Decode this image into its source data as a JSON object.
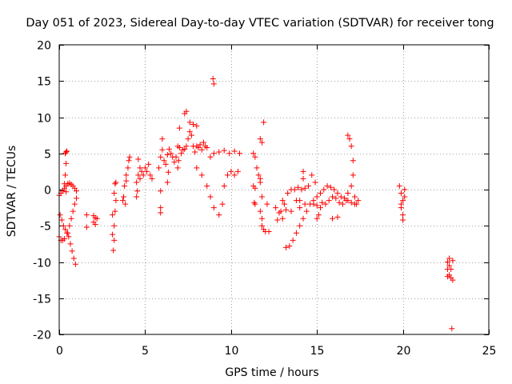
{
  "chart_data": {
    "type": "scatter",
    "title": "Day 051 of 2023, Sidereal Day-to-day VTEC variation (SDTVAR) for receiver tong",
    "xlabel": "GPS time / hours",
    "ylabel": "SDTVAR / TECUs",
    "xlim": [
      0,
      25
    ],
    "ylim": [
      -20,
      20
    ],
    "xticks": [
      0,
      5,
      10,
      15,
      20,
      25
    ],
    "yticks": [
      -20,
      -15,
      -10,
      -5,
      0,
      5,
      10,
      15,
      20
    ],
    "xtick_labels": [
      "0",
      "5",
      "10",
      "15",
      "20",
      "25"
    ],
    "ytick_labels": [
      "-20",
      "-15",
      "-10",
      "-5",
      "0",
      "5",
      "10",
      "15",
      "20"
    ],
    "grid": true,
    "marker": "+",
    "color": "#ff0000",
    "series": [
      {
        "name": "SDTVAR",
        "points": [
          [
            0.0,
            -0.8
          ],
          [
            0.1,
            -0.5
          ],
          [
            0.2,
            -0.2
          ],
          [
            0.3,
            0.2
          ],
          [
            0.4,
            0.5
          ],
          [
            0.5,
            0.8
          ],
          [
            0.6,
            0.9
          ],
          [
            0.7,
            0.7
          ],
          [
            0.8,
            0.5
          ],
          [
            0.9,
            0.2
          ],
          [
            1.0,
            -0.2
          ],
          [
            0.05,
            -3.5
          ],
          [
            0.15,
            -4.2
          ],
          [
            0.25,
            -5.0
          ],
          [
            0.35,
            -5.5
          ],
          [
            0.45,
            -6.0
          ],
          [
            0.55,
            -6.5
          ],
          [
            0.65,
            -7.5
          ],
          [
            0.75,
            -8.5
          ],
          [
            0.85,
            -9.5
          ],
          [
            0.95,
            -10.3
          ],
          [
            0.0,
            -6.5
          ],
          [
            0.1,
            -7.0
          ],
          [
            0.2,
            -7.0
          ],
          [
            0.3,
            -6.8
          ],
          [
            0.5,
            -6.0
          ],
          [
            0.6,
            -5.0
          ],
          [
            0.7,
            -4.0
          ],
          [
            0.8,
            -3.0
          ],
          [
            0.9,
            -2.0
          ],
          [
            1.0,
            -1.2
          ],
          [
            0.3,
            0.8
          ],
          [
            0.4,
            -0.3
          ],
          [
            0.35,
            5.0
          ],
          [
            0.4,
            5.2
          ],
          [
            0.45,
            5.3
          ],
          [
            0.4,
            3.6
          ],
          [
            0.35,
            2.0
          ],
          [
            1.6,
            -3.5
          ],
          [
            1.6,
            -5.2
          ],
          [
            2.0,
            -3.6
          ],
          [
            2.0,
            -4.5
          ],
          [
            2.1,
            -4.8
          ],
          [
            2.2,
            -4.0
          ],
          [
            2.1,
            -3.9
          ],
          [
            3.1,
            -6.2
          ],
          [
            3.15,
            -8.4
          ],
          [
            3.2,
            -5.0
          ],
          [
            3.25,
            -3.0
          ],
          [
            3.3,
            -1.5
          ],
          [
            3.2,
            -0.5
          ],
          [
            3.25,
            0.8
          ],
          [
            3.3,
            1.0
          ],
          [
            3.1,
            -3.5
          ],
          [
            3.2,
            -7.0
          ],
          [
            3.7,
            -1.5
          ],
          [
            3.8,
            0.5
          ],
          [
            3.9,
            2.0
          ],
          [
            4.0,
            3.0
          ],
          [
            4.05,
            4.0
          ],
          [
            4.1,
            4.5
          ],
          [
            3.85,
            -2.0
          ],
          [
            3.9,
            1.2
          ],
          [
            3.75,
            -1.0
          ],
          [
            4.5,
            1.0
          ],
          [
            4.6,
            2.0
          ],
          [
            4.7,
            1.5
          ],
          [
            4.8,
            2.5
          ],
          [
            4.9,
            2.0
          ],
          [
            5.0,
            3.0
          ],
          [
            5.1,
            2.5
          ],
          [
            5.2,
            3.5
          ],
          [
            5.3,
            2.0
          ],
          [
            5.4,
            1.5
          ],
          [
            4.6,
            4.2
          ],
          [
            4.7,
            3.0
          ],
          [
            4.5,
            -1.0
          ],
          [
            4.55,
            -0.2
          ],
          [
            5.8,
            3.0
          ],
          [
            5.9,
            4.5
          ],
          [
            6.0,
            5.5
          ],
          [
            6.1,
            4.0
          ],
          [
            6.2,
            3.5
          ],
          [
            6.3,
            4.8
          ],
          [
            6.4,
            5.6
          ],
          [
            6.5,
            5.0
          ],
          [
            6.6,
            4.5
          ],
          [
            6.7,
            3.8
          ],
          [
            5.9,
            -0.2
          ],
          [
            5.9,
            -2.5
          ],
          [
            5.9,
            -3.2
          ],
          [
            6.0,
            7.0
          ],
          [
            6.3,
            1.0
          ],
          [
            6.35,
            2.4
          ],
          [
            6.9,
            6.0
          ],
          [
            7.0,
            5.8
          ],
          [
            7.1,
            5.0
          ],
          [
            7.2,
            5.5
          ],
          [
            7.3,
            5.6
          ],
          [
            7.4,
            6.0
          ],
          [
            7.5,
            7.0
          ],
          [
            7.6,
            8.0
          ],
          [
            7.7,
            7.5
          ],
          [
            7.8,
            6.0
          ],
          [
            7.9,
            5.2
          ],
          [
            8.0,
            6.0
          ],
          [
            8.1,
            5.8
          ],
          [
            8.2,
            6.2
          ],
          [
            8.3,
            5.5
          ],
          [
            8.4,
            6.5
          ],
          [
            8.5,
            6.0
          ],
          [
            8.6,
            5.8
          ],
          [
            7.0,
            8.5
          ],
          [
            7.3,
            10.5
          ],
          [
            7.4,
            10.8
          ],
          [
            7.6,
            9.3
          ],
          [
            7.8,
            9.0
          ],
          [
            8.0,
            8.8
          ],
          [
            6.8,
            4.5
          ],
          [
            6.9,
            3.0
          ],
          [
            6.95,
            4.0
          ],
          [
            8.0,
            3.0
          ],
          [
            8.3,
            2.0
          ],
          [
            8.6,
            0.5
          ],
          [
            8.8,
            -1.0
          ],
          [
            9.0,
            -2.5
          ],
          [
            9.3,
            -3.5
          ],
          [
            9.5,
            -2.0
          ],
          [
            9.6,
            0.5
          ],
          [
            9.8,
            2.0
          ],
          [
            10.0,
            2.5
          ],
          [
            10.2,
            2.0
          ],
          [
            10.4,
            2.5
          ],
          [
            8.8,
            4.5
          ],
          [
            9.0,
            5.0
          ],
          [
            9.3,
            5.2
          ],
          [
            9.6,
            5.4
          ],
          [
            9.9,
            5.0
          ],
          [
            10.2,
            5.3
          ],
          [
            10.5,
            5.0
          ],
          [
            8.95,
            15.3
          ],
          [
            9.0,
            14.6
          ],
          [
            11.3,
            5.0
          ],
          [
            11.4,
            4.5
          ],
          [
            11.5,
            3.0
          ],
          [
            11.6,
            2.0
          ],
          [
            11.7,
            1.5
          ],
          [
            11.3,
            0.5
          ],
          [
            11.4,
            0.2
          ],
          [
            11.35,
            -1.8
          ],
          [
            11.4,
            -2.0
          ],
          [
            11.7,
            -3.0
          ],
          [
            11.8,
            -5.0
          ],
          [
            11.9,
            -5.5
          ],
          [
            12.0,
            -5.8
          ],
          [
            12.2,
            -5.8
          ],
          [
            11.8,
            -4.0
          ],
          [
            11.7,
            7.0
          ],
          [
            11.9,
            9.3
          ],
          [
            11.8,
            6.5
          ],
          [
            11.7,
            1.0
          ],
          [
            11.8,
            -1.0
          ],
          [
            12.1,
            -2.0
          ],
          [
            12.6,
            -2.5
          ],
          [
            12.9,
            -3.0
          ],
          [
            13.1,
            -2.0
          ],
          [
            13.3,
            -0.5
          ],
          [
            13.5,
            0.0
          ],
          [
            13.7,
            0.0
          ],
          [
            13.9,
            0.3
          ],
          [
            14.1,
            0.0
          ],
          [
            14.3,
            0.2
          ],
          [
            13.0,
            -1.5
          ],
          [
            13.2,
            -2.8
          ],
          [
            13.2,
            -8.0
          ],
          [
            13.4,
            -7.8
          ],
          [
            13.6,
            -7.0
          ],
          [
            13.8,
            -6.0
          ],
          [
            14.0,
            -5.0
          ],
          [
            14.2,
            -4.0
          ],
          [
            14.4,
            -3.0
          ],
          [
            14.6,
            -2.0
          ],
          [
            14.8,
            -1.5
          ],
          [
            12.7,
            -4.2
          ],
          [
            12.8,
            -3.2
          ],
          [
            13.0,
            -4.0
          ],
          [
            13.5,
            -3.0
          ],
          [
            13.8,
            -1.5
          ],
          [
            14.0,
            -2.5
          ],
          [
            14.3,
            -2.0
          ],
          [
            14.2,
            1.5
          ],
          [
            14.2,
            2.5
          ],
          [
            14.5,
            0.5
          ],
          [
            14.0,
            -1.5
          ],
          [
            15.0,
            -1.0
          ],
          [
            15.2,
            -0.5
          ],
          [
            15.4,
            0.0
          ],
          [
            15.6,
            0.5
          ],
          [
            15.8,
            0.3
          ],
          [
            16.0,
            0.0
          ],
          [
            16.2,
            -0.5
          ],
          [
            16.4,
            -1.0
          ],
          [
            16.6,
            -1.2
          ],
          [
            16.8,
            -1.5
          ],
          [
            17.0,
            -1.8
          ],
          [
            17.2,
            -2.0
          ],
          [
            15.0,
            -4.0
          ],
          [
            15.1,
            -3.5
          ],
          [
            15.2,
            -2.5
          ],
          [
            15.3,
            -1.8
          ],
          [
            15.5,
            -2.0
          ],
          [
            15.7,
            -1.5
          ],
          [
            15.9,
            -1.0
          ],
          [
            16.1,
            -1.2
          ],
          [
            16.3,
            -1.8
          ],
          [
            16.5,
            -2.0
          ],
          [
            16.7,
            -1.5
          ],
          [
            14.8,
            -2.0
          ],
          [
            14.9,
            1.0
          ],
          [
            14.7,
            2.0
          ],
          [
            15.0,
            -2.2
          ],
          [
            15.9,
            -4.0
          ],
          [
            16.2,
            -3.8
          ],
          [
            16.8,
            7.5
          ],
          [
            16.9,
            7.0
          ],
          [
            17.0,
            6.0
          ],
          [
            17.1,
            4.0
          ],
          [
            17.1,
            2.0
          ],
          [
            17.0,
            0.5
          ],
          [
            16.8,
            -0.5
          ],
          [
            17.3,
            -2.0
          ],
          [
            17.4,
            -1.5
          ],
          [
            17.2,
            -1.0
          ],
          [
            19.8,
            0.5
          ],
          [
            19.9,
            -0.5
          ],
          [
            20.0,
            -1.5
          ],
          [
            19.9,
            -2.5
          ],
          [
            20.0,
            -3.5
          ],
          [
            20.0,
            -4.2
          ],
          [
            20.1,
            0.0
          ],
          [
            20.1,
            -1.0
          ],
          [
            19.9,
            -2.0
          ],
          [
            22.6,
            -10.0
          ],
          [
            22.7,
            -10.5
          ],
          [
            22.8,
            -11.0
          ],
          [
            22.7,
            -11.8
          ],
          [
            22.6,
            -11.0
          ],
          [
            22.8,
            -12.2
          ],
          [
            22.9,
            -12.5
          ],
          [
            22.9,
            -9.8
          ],
          [
            22.7,
            -9.5
          ],
          [
            22.6,
            -12.0
          ],
          [
            22.85,
            -19.2
          ]
        ]
      }
    ]
  }
}
